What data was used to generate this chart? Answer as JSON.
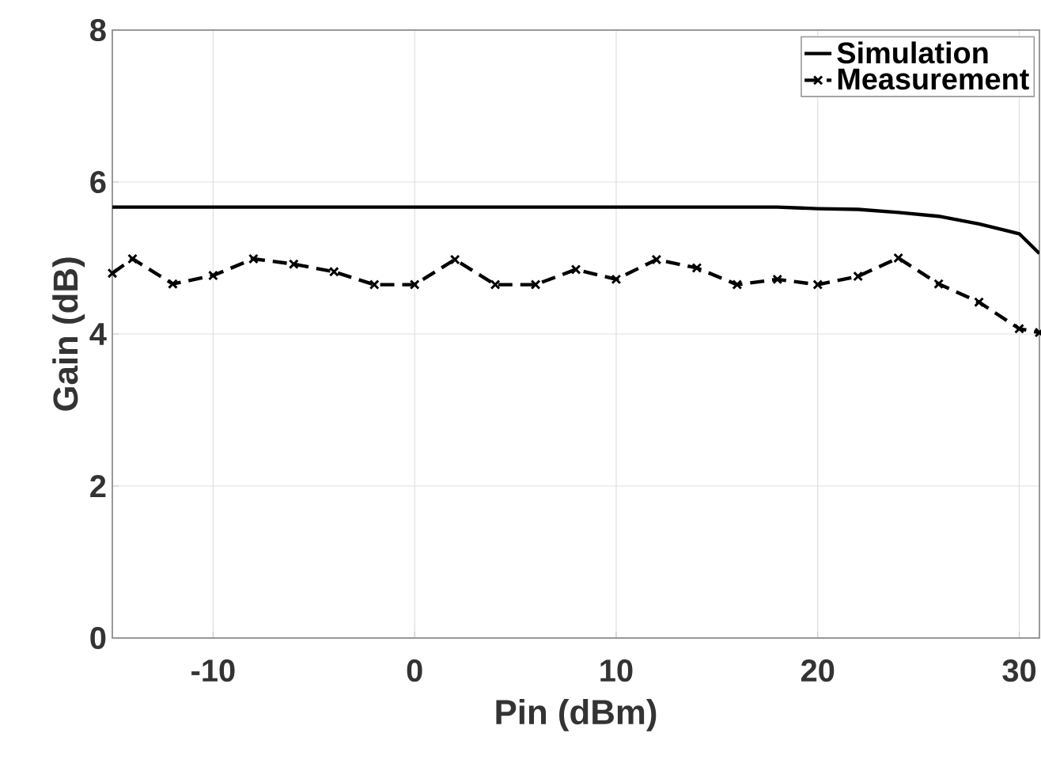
{
  "chart_data": {
    "type": "line",
    "xlabel": "Pin (dBm)",
    "ylabel": "Gain (dB)",
    "xlim": [
      -15,
      31
    ],
    "ylim": [
      0,
      8
    ],
    "xticks": [
      -10,
      0,
      10,
      20,
      30
    ],
    "yticks": [
      0,
      2,
      4,
      6,
      8
    ],
    "grid": true,
    "legend": "top right",
    "series": [
      {
        "name": "Simulation",
        "color": "#000000",
        "marker": "none",
        "line_style": "solid",
        "x": [
          -15,
          18,
          20,
          22,
          24,
          26,
          28,
          30,
          31
        ],
        "values": [
          5.67,
          5.67,
          5.65,
          5.64,
          5.6,
          5.55,
          5.45,
          5.32,
          5.06
        ]
      },
      {
        "name": "Measurement",
        "color": "#000000",
        "marker": "cross",
        "line_style": "dashed",
        "x": [
          -15,
          -14,
          -12,
          -10,
          -8,
          -6,
          -4,
          -2,
          0,
          2,
          4,
          6,
          8,
          10,
          12,
          14,
          16,
          18,
          20,
          22,
          24,
          26,
          28,
          30,
          31
        ],
        "values": [
          4.8,
          4.99,
          4.66,
          4.77,
          4.99,
          4.92,
          4.82,
          4.65,
          4.65,
          4.98,
          4.65,
          4.65,
          4.85,
          4.72,
          4.98,
          4.87,
          4.65,
          4.72,
          4.65,
          4.76,
          5.0,
          4.66,
          4.42,
          4.07,
          4.02
        ]
      }
    ]
  }
}
